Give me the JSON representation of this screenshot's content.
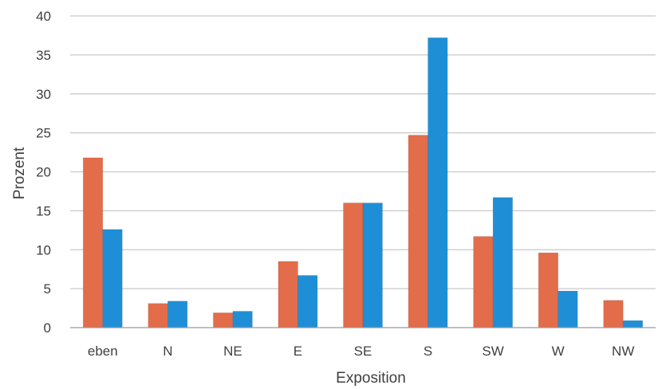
{
  "chart_data": {
    "type": "bar",
    "title": "",
    "xlabel": "Exposition",
    "ylabel": "Prozent",
    "categories": [
      "eben",
      "N",
      "NE",
      "E",
      "SE",
      "S",
      "SW",
      "W",
      "NW"
    ],
    "series": [
      {
        "values": [
          21.8,
          3.1,
          1.9,
          8.5,
          16.0,
          24.7,
          11.7,
          9.6,
          3.5
        ],
        "color": "#e36c4a"
      },
      {
        "values": [
          12.6,
          3.4,
          2.1,
          6.7,
          16.0,
          37.2,
          16.7,
          4.7,
          0.9
        ],
        "color": "#1e8fd6"
      }
    ],
    "ylim": [
      0,
      40
    ],
    "yticks": [
      0,
      5,
      10,
      15,
      20,
      25,
      30,
      35,
      40
    ],
    "grid": true,
    "legend": "none"
  }
}
